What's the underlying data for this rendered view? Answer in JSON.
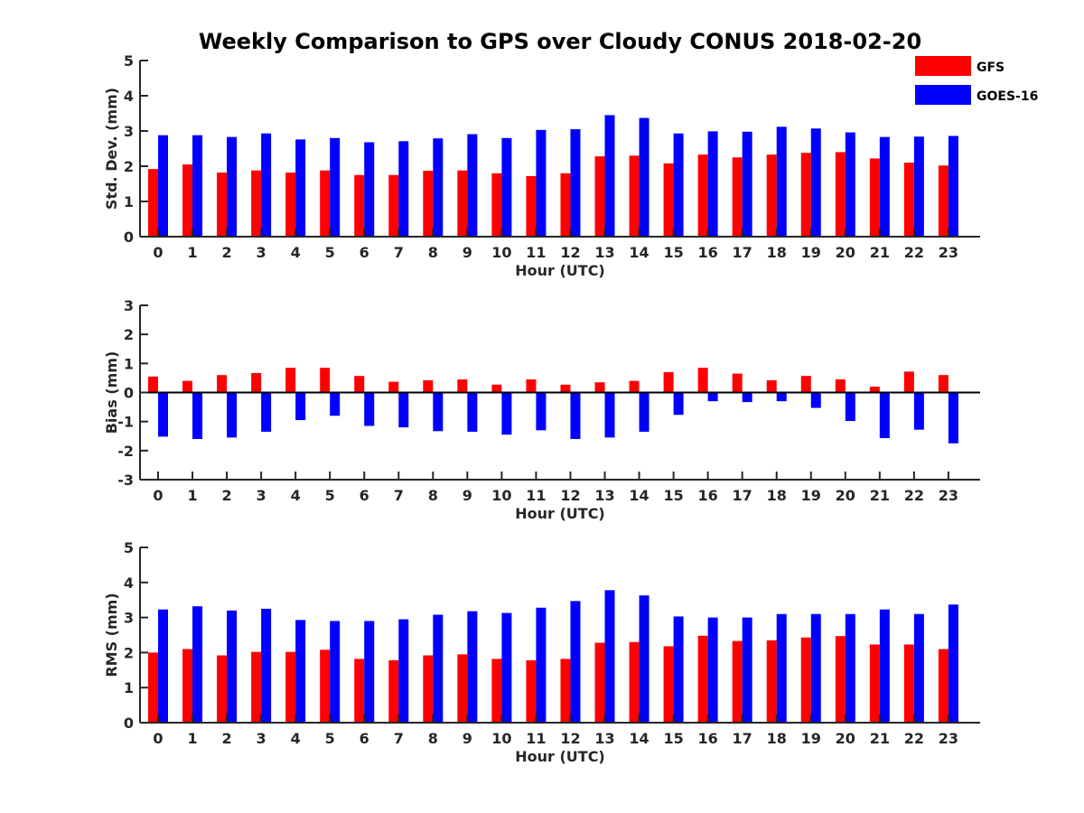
{
  "figure": {
    "title": "Weekly Comparison to GPS over Cloudy CONUS 2018-02-20"
  },
  "legend": {
    "placement": "top-right",
    "entries": [
      {
        "label": "GFS",
        "color": "#ff0000"
      },
      {
        "label": "GOES-16",
        "color": "#0000ff"
      }
    ]
  },
  "chart_data": [
    {
      "type": "bar",
      "xlabel": "Hour (UTC)",
      "ylabel": "Std. Dev. (mm)",
      "ylim": [
        0,
        5
      ],
      "yticks": [
        0,
        1,
        2,
        3,
        4,
        5
      ],
      "categories": [
        "0",
        "1",
        "2",
        "3",
        "4",
        "5",
        "6",
        "7",
        "8",
        "9",
        "10",
        "11",
        "12",
        "13",
        "14",
        "15",
        "16",
        "17",
        "18",
        "19",
        "20",
        "21",
        "22",
        "23"
      ],
      "series": [
        {
          "name": "GFS",
          "color": "#ff0000",
          "values": [
            1.92,
            2.05,
            1.82,
            1.88,
            1.82,
            1.88,
            1.75,
            1.75,
            1.87,
            1.88,
            1.8,
            1.72,
            1.8,
            2.28,
            2.3,
            2.08,
            2.33,
            2.25,
            2.33,
            2.38,
            2.4,
            2.22,
            2.1,
            2.02
          ]
        },
        {
          "name": "GOES-16",
          "color": "#0000ff",
          "values": [
            2.88,
            2.88,
            2.83,
            2.93,
            2.76,
            2.8,
            2.68,
            2.71,
            2.79,
            2.91,
            2.8,
            3.03,
            3.05,
            3.45,
            3.37,
            2.93,
            2.99,
            2.98,
            3.12,
            3.07,
            2.96,
            2.83,
            2.84,
            2.86
          ]
        }
      ]
    },
    {
      "type": "bar",
      "xlabel": "Hour (UTC)",
      "ylabel": "Bias (mm)",
      "ylim": [
        -3,
        3
      ],
      "yticks": [
        -3,
        -2,
        -1,
        0,
        1,
        2,
        3
      ],
      "categories": [
        "0",
        "1",
        "2",
        "3",
        "4",
        "5",
        "6",
        "7",
        "8",
        "9",
        "10",
        "11",
        "12",
        "13",
        "14",
        "15",
        "16",
        "17",
        "18",
        "19",
        "20",
        "21",
        "22",
        "23"
      ],
      "series": [
        {
          "name": "GFS",
          "color": "#ff0000",
          "values": [
            0.55,
            0.4,
            0.6,
            0.67,
            0.85,
            0.85,
            0.57,
            0.37,
            0.42,
            0.45,
            0.27,
            0.45,
            0.27,
            0.35,
            0.4,
            0.7,
            0.85,
            0.65,
            0.42,
            0.57,
            0.45,
            0.2,
            0.72,
            0.6
          ]
        },
        {
          "name": "GOES-16",
          "color": "#0000ff",
          "values": [
            -1.52,
            -1.6,
            -1.55,
            -1.35,
            -0.95,
            -0.8,
            -1.15,
            -1.2,
            -1.33,
            -1.35,
            -1.45,
            -1.3,
            -1.6,
            -1.55,
            -1.35,
            -0.77,
            -0.3,
            -0.33,
            -0.3,
            -0.53,
            -0.98,
            -1.57,
            -1.28,
            -1.75
          ]
        }
      ]
    },
    {
      "type": "bar",
      "xlabel": "Hour (UTC)",
      "ylabel": "RMS (mm)",
      "ylim": [
        0,
        5
      ],
      "yticks": [
        0,
        1,
        2,
        3,
        4,
        5
      ],
      "categories": [
        "0",
        "1",
        "2",
        "3",
        "4",
        "5",
        "6",
        "7",
        "8",
        "9",
        "10",
        "11",
        "12",
        "13",
        "14",
        "15",
        "16",
        "17",
        "18",
        "19",
        "20",
        "21",
        "22",
        "23"
      ],
      "series": [
        {
          "name": "GFS",
          "color": "#ff0000",
          "values": [
            2.0,
            2.1,
            1.92,
            2.02,
            2.02,
            2.08,
            1.82,
            1.78,
            1.92,
            1.95,
            1.82,
            1.78,
            1.82,
            2.28,
            2.3,
            2.18,
            2.48,
            2.33,
            2.35,
            2.43,
            2.47,
            2.23,
            2.23,
            2.1
          ]
        },
        {
          "name": "GOES-16",
          "color": "#0000ff",
          "values": [
            3.23,
            3.32,
            3.2,
            3.25,
            2.93,
            2.9,
            2.9,
            2.95,
            3.08,
            3.18,
            3.13,
            3.28,
            3.47,
            3.78,
            3.63,
            3.03,
            3.0,
            3.0,
            3.1,
            3.1,
            3.1,
            3.23,
            3.1,
            3.37
          ]
        }
      ]
    }
  ]
}
